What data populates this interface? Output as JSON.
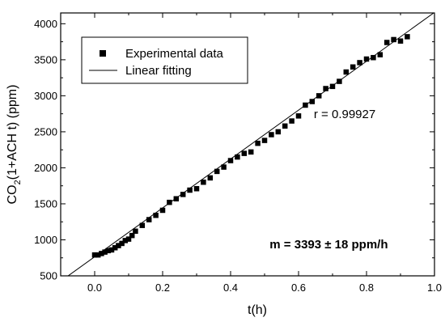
{
  "chart_data": {
    "type": "scatter",
    "xlabel": "t(h)",
    "ylabel": {
      "prefix": "CO",
      "subscript": "2",
      "suffix": "(1+ACH t) (ppm)"
    },
    "xlim": [
      -0.1,
      1.0
    ],
    "ylim": [
      500,
      4150
    ],
    "xticks": [
      0.0,
      0.2,
      0.4,
      0.6,
      0.8,
      1.0
    ],
    "xtick_labels": [
      "0.0",
      "0.2",
      "0.4",
      "0.6",
      "0.8",
      "1.0"
    ],
    "yticks": [
      500,
      1000,
      1500,
      2000,
      2500,
      3000,
      3500,
      4000
    ],
    "ytick_labels": [
      "500",
      "1000",
      "1500",
      "2000",
      "2500",
      "3000",
      "3500",
      "4000"
    ],
    "grid": false,
    "legend_position": "top-left",
    "series": [
      {
        "name": "Experimental data",
        "marker": "square",
        "color": "#000000",
        "x": [
          0.0,
          0.02,
          0.04,
          0.06,
          0.08,
          0.1,
          0.12,
          0.14,
          0.16,
          0.18,
          0.2,
          0.22,
          0.24,
          0.26,
          0.28,
          0.3,
          0.32,
          0.34,
          0.36,
          0.38,
          0.4,
          0.42,
          0.44,
          0.46,
          0.48,
          0.5,
          0.52,
          0.54,
          0.56,
          0.58,
          0.6,
          0.62,
          0.64,
          0.66,
          0.68,
          0.7,
          0.72,
          0.74,
          0.76,
          0.78,
          0.8,
          0.82,
          0.84,
          0.86,
          0.88,
          0.9,
          0.92,
          0.01,
          0.03,
          0.05,
          0.07,
          0.09,
          0.11
        ],
        "y": [
          790,
          810,
          850,
          890,
          950,
          1010,
          1120,
          1200,
          1280,
          1340,
          1410,
          1520,
          1570,
          1630,
          1690,
          1710,
          1800,
          1860,
          1950,
          2010,
          2100,
          2150,
          2200,
          2220,
          2340,
          2380,
          2460,
          2500,
          2580,
          2650,
          2720,
          2870,
          2920,
          3000,
          3100,
          3130,
          3200,
          3330,
          3400,
          3460,
          3510,
          3530,
          3570,
          3740,
          3780,
          3760,
          3820,
          790,
          830,
          860,
          920,
          990,
          1060
        ]
      },
      {
        "name": "Linear fitting",
        "type": "line",
        "color": "#000000",
        "slope": 3393,
        "intercept": 765,
        "x_range": [
          -0.1,
          1.0
        ]
      }
    ],
    "annotations": [
      {
        "text": "r = 0.99927",
        "x": 0.645,
        "y": 2690
      },
      {
        "text": "m = 3393 ± 18 ppm/h",
        "x": 0.515,
        "y": 880,
        "bold": true
      }
    ]
  }
}
